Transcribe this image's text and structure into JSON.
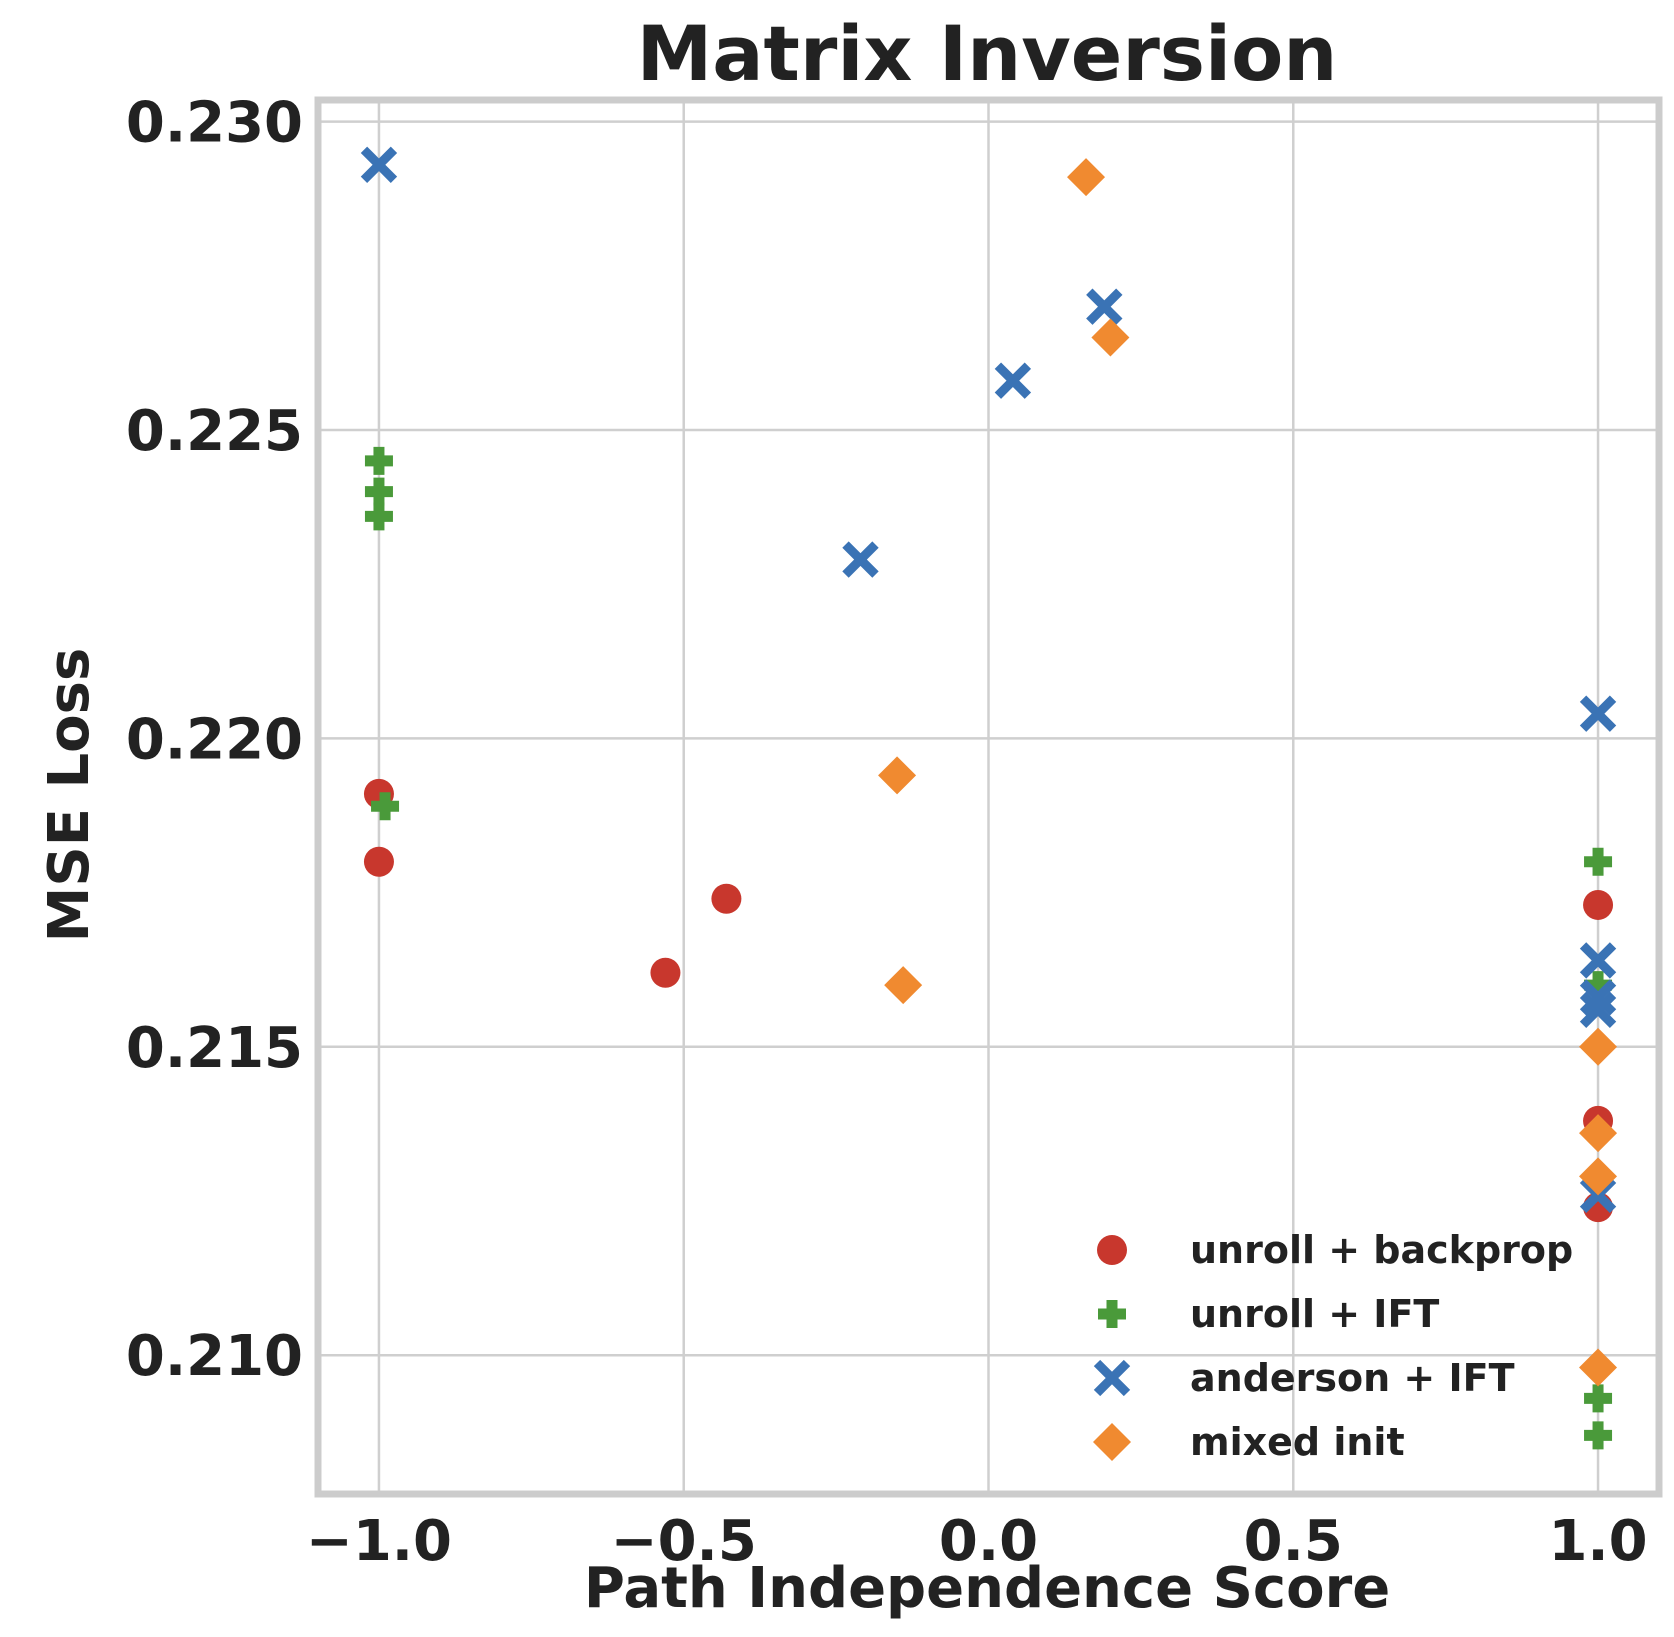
{
  "chart_data": {
    "type": "scatter",
    "title": "Matrix Inversion",
    "xlabel": "Path Independence Score",
    "ylabel": "MSE Loss",
    "xlim": [
      -1.1,
      1.1
    ],
    "ylim": [
      0.20775,
      0.23035
    ],
    "xticks": [
      -1.0,
      -0.5,
      0.0,
      0.5,
      1.0
    ],
    "xtick_labels": [
      "−1.0",
      "−0.5",
      "0.0",
      "0.5",
      "1.0"
    ],
    "yticks": [
      0.21,
      0.215,
      0.22,
      0.225,
      0.23
    ],
    "ytick_labels": [
      "0.210",
      "0.215",
      "0.220",
      "0.225",
      "0.230"
    ],
    "grid": true,
    "legend_position": "bottom-right",
    "series": [
      {
        "name": "unroll + backprop",
        "marker": "circle",
        "color": "#c8372d",
        "points": [
          [
            -1.0,
            0.2191
          ],
          [
            -1.0,
            0.218
          ],
          [
            -0.53,
            0.2162
          ],
          [
            -0.43,
            0.2174
          ],
          [
            1.0,
            0.2173
          ],
          [
            1.0,
            0.2138
          ],
          [
            1.0,
            0.2124
          ]
        ]
      },
      {
        "name": "unroll + IFT",
        "marker": "plus",
        "color": "#4a9a3a",
        "points": [
          [
            -1.0,
            0.2245
          ],
          [
            -1.0,
            0.224
          ],
          [
            -1.0,
            0.2236
          ],
          [
            -0.99,
            0.2189
          ],
          [
            1.0,
            0.218
          ],
          [
            1.0,
            0.216
          ],
          [
            1.0,
            0.2093
          ],
          [
            1.0,
            0.2087
          ]
        ]
      },
      {
        "name": "anderson + IFT",
        "marker": "x",
        "color": "#3a73b5",
        "points": [
          [
            -1.0,
            0.2293
          ],
          [
            -0.21,
            0.2229
          ],
          [
            0.04,
            0.2258
          ],
          [
            0.19,
            0.227
          ],
          [
            1.0,
            0.2204
          ],
          [
            1.0,
            0.2164
          ],
          [
            1.0,
            0.2158
          ],
          [
            1.0,
            0.2156
          ],
          [
            1.0,
            0.2126
          ]
        ]
      },
      {
        "name": "mixed init",
        "marker": "diamond",
        "color": "#f08a30",
        "points": [
          [
            0.16,
            0.2291
          ],
          [
            0.2,
            0.2265
          ],
          [
            -0.15,
            0.2194
          ],
          [
            -0.14,
            0.216
          ],
          [
            1.0,
            0.215
          ],
          [
            1.0,
            0.2136
          ],
          [
            1.0,
            0.2129
          ],
          [
            1.0,
            0.2098
          ]
        ]
      }
    ]
  }
}
